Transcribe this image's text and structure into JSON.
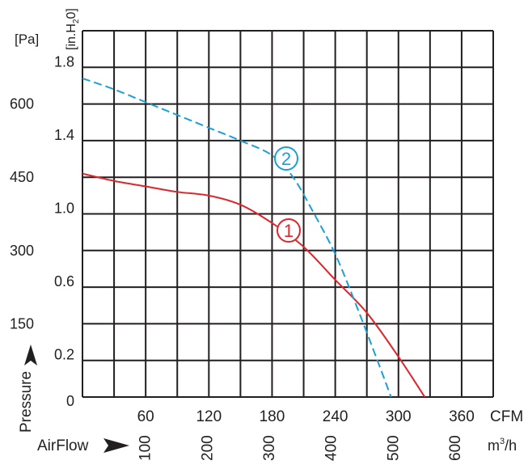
{
  "chart_data": {
    "type": "line",
    "y_axis_left": {
      "unit_label": "[Pa]",
      "ticks": [
        {
          "value": 150,
          "label": "150"
        },
        {
          "value": 300,
          "label": "300"
        },
        {
          "value": 450,
          "label": "450"
        },
        {
          "value": 600,
          "label": "600"
        }
      ]
    },
    "y_axis_inner": {
      "unit_label": "[in.H",
      "unit_label_sub": "2",
      "unit_label_end": "0]",
      "range": [
        0,
        2.0
      ],
      "ticks": [
        {
          "value": 0,
          "label": "0"
        },
        {
          "value": 0.2,
          "label": "0.2"
        },
        {
          "value": 0.6,
          "label": "0.6"
        },
        {
          "value": 1.0,
          "label": "1.0"
        },
        {
          "value": 1.4,
          "label": "1.4"
        },
        {
          "value": 1.8,
          "label": "1.8"
        }
      ],
      "title": "Pressure"
    },
    "x_axis_cfm": {
      "unit_label": "CFM",
      "range": [
        0,
        390
      ],
      "ticks": [
        {
          "value": 60,
          "label": "60"
        },
        {
          "value": 120,
          "label": "120"
        },
        {
          "value": 180,
          "label": "180"
        },
        {
          "value": 240,
          "label": "240"
        },
        {
          "value": 300,
          "label": "300"
        },
        {
          "value": 360,
          "label": "360"
        }
      ]
    },
    "x_axis_m3h": {
      "unit_label": "m",
      "unit_label_sup": "3",
      "unit_label_end": "/h",
      "title": "AirFlow",
      "ticks": [
        {
          "value": 100,
          "label": "100"
        },
        {
          "value": 200,
          "label": "200"
        },
        {
          "value": 300,
          "label": "300"
        },
        {
          "value": 400,
          "label": "400"
        },
        {
          "value": 500,
          "label": "500"
        },
        {
          "value": 600,
          "label": "600"
        }
      ]
    },
    "grid": true,
    "series": [
      {
        "name": "1",
        "color": "#e0252b",
        "style": "solid",
        "x": [
          0,
          30,
          60,
          90,
          120,
          150,
          180,
          210,
          240,
          270,
          300,
          325
        ],
        "y": [
          1.22,
          1.18,
          1.15,
          1.12,
          1.1,
          1.05,
          0.95,
          0.82,
          0.64,
          0.46,
          0.22,
          0.0
        ]
      },
      {
        "name": "2",
        "color": "#1aa0d8",
        "style": "dashed",
        "x": [
          0,
          30,
          60,
          90,
          120,
          150,
          180,
          200,
          220,
          240,
          260,
          280,
          293
        ],
        "y": [
          1.74,
          1.68,
          1.61,
          1.54,
          1.47,
          1.4,
          1.32,
          1.2,
          1.0,
          0.78,
          0.5,
          0.2,
          0.0
        ]
      }
    ]
  }
}
